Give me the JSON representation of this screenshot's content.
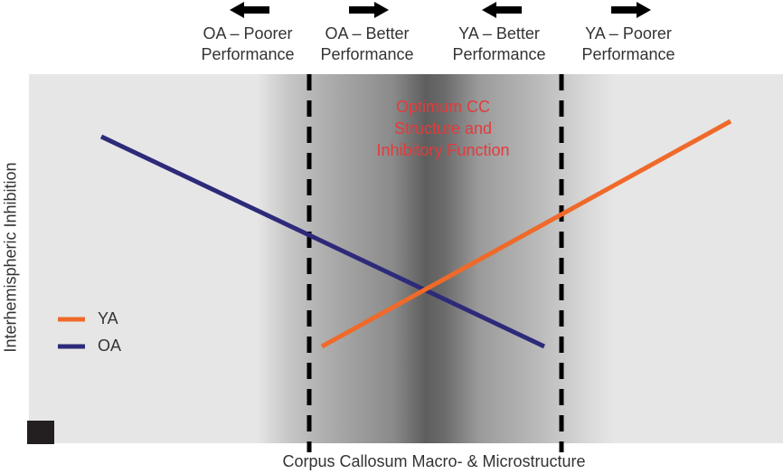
{
  "header": {
    "oa_poorer": "OA – Poorer\nPerformance",
    "oa_better": "OA – Better\nPerformance",
    "ya_better": "YA – Better\nPerformance",
    "ya_poorer": "YA – Poorer\nPerformance"
  },
  "region_label": "Optimum CC\nStructure and\nInhibitory Function",
  "axes": {
    "y_label": "Interhemispheric Inhibition",
    "x_label": "Corpus Callosum Macro- & Microstructure"
  },
  "legend": {
    "ya": "YA",
    "oa": "OA"
  },
  "colors": {
    "ya": "#ef6a2a",
    "oa": "#2e2a7a",
    "highlight_text": "#e53a3a",
    "panel": "#e6e6e6"
  },
  "icons": {
    "arrow_left": "arrow-left-icon",
    "arrow_right": "arrow-right-icon"
  }
}
